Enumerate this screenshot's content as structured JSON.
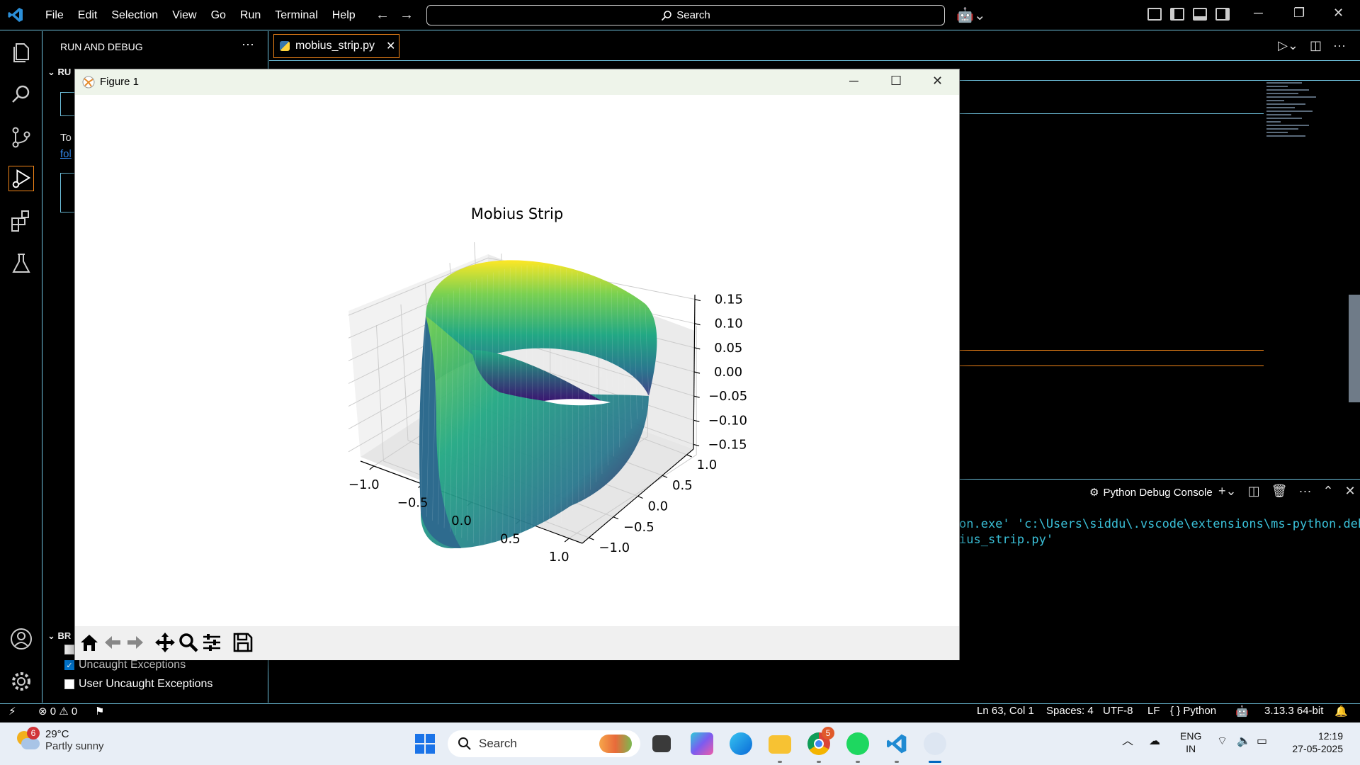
{
  "menubar": {
    "items": [
      "File",
      "Edit",
      "Selection",
      "View",
      "Go",
      "Run",
      "Terminal",
      "Help"
    ]
  },
  "titlebar": {
    "search_label": "Search"
  },
  "sidebar": {
    "title": "RUN AND DEBUG",
    "section_top": "RU",
    "text_prefix": "To",
    "link_prefix": "fol",
    "section_bottom": "BR",
    "breakpoints": [
      {
        "label": "Uncaught Exceptions",
        "checked": true
      },
      {
        "label": "User Uncaught Exceptions",
        "checked": false
      }
    ]
  },
  "editor": {
    "tab_label": "mobius_strip.py"
  },
  "panel": {
    "title": "Python Debug Console",
    "console_lines": [
      "on.exe' 'c:\\Users\\siddu\\.vscode\\extensions\\ms-python.debugpy-",
      "ius_strip.py'"
    ]
  },
  "statusbar": {
    "errors": "0",
    "warnings": "0",
    "position": "Ln 63, Col 1",
    "spaces": "Spaces: 4",
    "encoding": "UTF-8",
    "eol": "LF",
    "language": "Python",
    "interpreter": "3.13.3 64-bit"
  },
  "taskbar": {
    "weather_badge": "6",
    "temperature": "29°C",
    "condition": "Partly sunny",
    "search_label": "Search",
    "chrome_badge": "5",
    "lang_line1": "ENG",
    "lang_line2": "IN",
    "time": "12:19",
    "date": "27-05-2025"
  },
  "figure": {
    "window_title": "Figure 1",
    "toolbar_icons": [
      "home-icon",
      "back-icon",
      "forward-icon",
      "pan-icon",
      "zoom-icon",
      "configure-icon",
      "save-icon"
    ]
  },
  "chart_data": {
    "type": "surface3d",
    "title": "Mobius Strip",
    "colormap": "viridis",
    "x_ticks": [
      "−1.0",
      "−0.5",
      "0.0",
      "0.5",
      "1.0"
    ],
    "y_ticks": [
      "1.0",
      "0.5",
      "0.0",
      "−0.5",
      "−1.0"
    ],
    "z_ticks": [
      "0.15",
      "0.10",
      "0.05",
      "0.00",
      "−0.05",
      "−0.10",
      "−0.15"
    ],
    "xlim": [
      -1.2,
      1.2
    ],
    "ylim": [
      -1.2,
      1.2
    ],
    "zlim": [
      -0.15,
      0.15
    ],
    "grid": true
  }
}
